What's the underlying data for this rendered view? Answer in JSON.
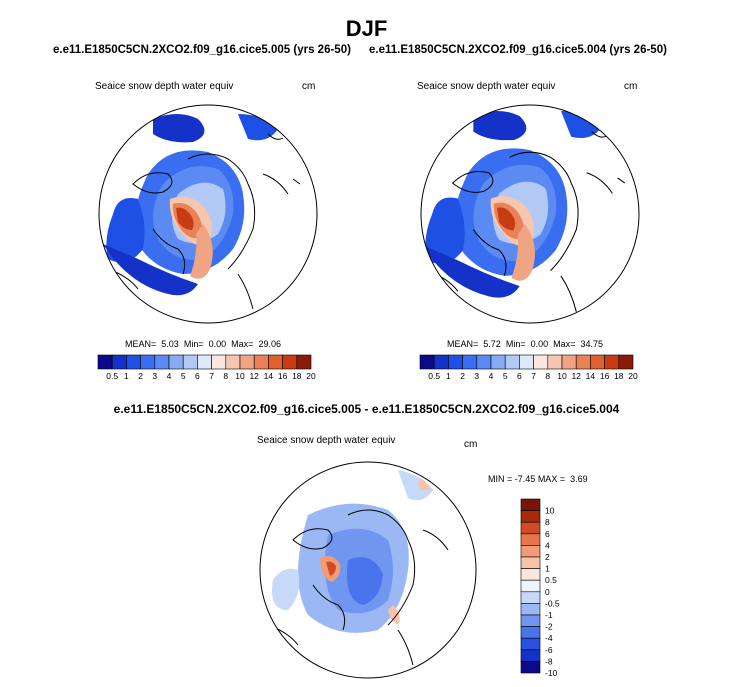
{
  "season": "DJF",
  "panels": [
    {
      "case": "e.e11.E1850C5CN.2XCO2.f09_g16.cice5.005 (yrs 26-50)",
      "variable": "Seaice snow depth water equiv",
      "units": "cm",
      "mean_label": "MEAN=",
      "mean": "5.03",
      "min_label": "Min=",
      "min": "0.00",
      "max_label": "Max=",
      "max": "29.06"
    },
    {
      "case": "e.e11.E1850C5CN.2XCO2.f09_g16.cice5.004 (yrs 26-50)",
      "variable": "Seaice snow depth water equiv",
      "units": "cm",
      "mean_label": "MEAN=",
      "mean": "5.72",
      "min_label": "Min=",
      "min": "0.00",
      "max_label": "Max=",
      "max": "34.75"
    }
  ],
  "diff": {
    "title": "e.e11.E1850C5CN.2XCO2.f09_g16.cice5.005 - e.e11.E1850C5CN.2XCO2.f09_g16.cice5.004",
    "variable": "Seaice snow depth water equiv",
    "units": "cm",
    "min_label": "MIN =",
    "min": "-7.45",
    "max_label": "MAX =",
    "max": "3.69"
  },
  "chart_data": [
    {
      "type": "heatmap",
      "projection": "polar stereographic (north)",
      "field": "Seaice snow depth water equiv",
      "units": "cm",
      "colorbar_levels": [
        0.5,
        1,
        2,
        3,
        4,
        5,
        6,
        7,
        8,
        10,
        12,
        14,
        16,
        18,
        20
      ],
      "mean": 5.03,
      "min": 0.0,
      "max": 29.06
    },
    {
      "type": "heatmap",
      "projection": "polar stereographic (north)",
      "field": "Seaice snow depth water equiv",
      "units": "cm",
      "colorbar_levels": [
        0.5,
        1,
        2,
        3,
        4,
        5,
        6,
        7,
        8,
        10,
        12,
        14,
        16,
        18,
        20
      ],
      "mean": 5.72,
      "min": 0.0,
      "max": 34.75
    },
    {
      "type": "heatmap",
      "projection": "polar stereographic (north)",
      "field": "Seaice snow depth water equiv (difference)",
      "units": "cm",
      "colorbar_levels": [
        10,
        8,
        6,
        4,
        2,
        1,
        0.5,
        0,
        -0.5,
        -1,
        -2,
        -4,
        -6,
        -8,
        -10
      ],
      "min": -7.45,
      "max": 3.69
    }
  ],
  "colors": {
    "abs_palette": [
      "#0b0b8a",
      "#1432c8",
      "#1e50e6",
      "#3a6ef0",
      "#5a8af2",
      "#86aaf4",
      "#b2c9f6",
      "#dde8fa",
      "#fbe7df",
      "#f6c6b0",
      "#f0a484",
      "#ea8258",
      "#e0602e",
      "#c83c14",
      "#8c1a08"
    ],
    "diff_palette": [
      "#0b0b8a",
      "#1432c8",
      "#2a50e0",
      "#4a74ec",
      "#7096f0",
      "#9cb8f4",
      "#c7d9f8",
      "#eef4fc",
      "#fbe6dc",
      "#f6c2a8",
      "#f09c78",
      "#e8744a",
      "#d24a22",
      "#a82a0c",
      "#7a1406"
    ]
  }
}
